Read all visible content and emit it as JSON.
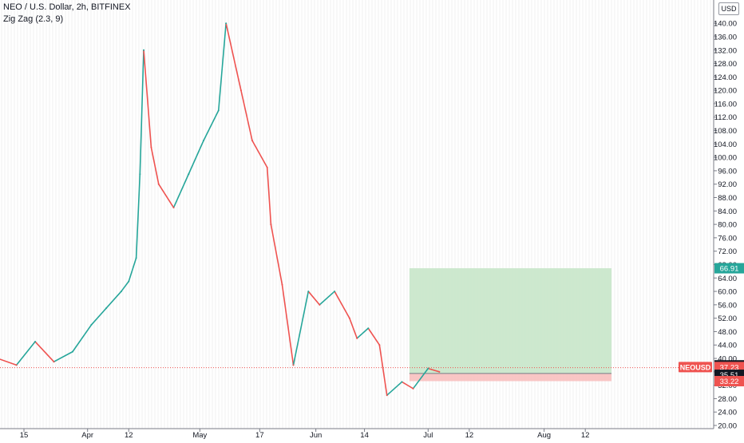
{
  "legend": {
    "title": "NEO / U.S. Dollar, 2h, BITFINEX",
    "indicator": "Zig Zag (2.3, 9)"
  },
  "price_axis": {
    "currency": "USD"
  },
  "colors": {
    "up": "#26a69a",
    "down": "#ef5350",
    "profit_zone": "#c8e6c9",
    "loss_zone": "#f8c0bf",
    "profit_tag": "#26a69a",
    "loss_tag": "#ef5350",
    "current_tag": "#ef5350",
    "neutral_tag": "#131722",
    "axis_text": "#131722",
    "grid": "#e6e6ea"
  },
  "chart_data": {
    "type": "line",
    "title": "NEO / U.S. Dollar, 2h, BITFINEX",
    "ylabel": "USD",
    "ylim": [
      20,
      146
    ],
    "y_ticks": [
      "20.00",
      "24.00",
      "28.00",
      "32.00",
      "36.00",
      "40.00",
      "44.00",
      "48.00",
      "52.00",
      "56.00",
      "60.00",
      "64.00",
      "68.00",
      "72.00",
      "76.00",
      "80.00",
      "84.00",
      "88.00",
      "92.00",
      "96.00",
      "100.00",
      "104.00",
      "108.00",
      "112.00",
      "116.00",
      "120.00",
      "124.00",
      "128.00",
      "132.00",
      "136.00",
      "140.00"
    ],
    "x_ticks": [
      "15",
      "Apr",
      "12",
      "May",
      "17",
      "Jun",
      "14",
      "Jul",
      "12",
      "Aug",
      "12"
    ],
    "x": [
      "Mar 08",
      "Mar 13",
      "Mar 18",
      "Mar 23",
      "Mar 28",
      "Apr 02",
      "Apr 06",
      "Apr 10",
      "Apr 12",
      "Apr 14",
      "Apr 15",
      "Apr 16",
      "Apr 18",
      "Apr 20",
      "Apr 24",
      "Apr 28",
      "May 02",
      "May 06",
      "May 08",
      "May 12",
      "May 15",
      "May 19",
      "May 20",
      "May 23",
      "May 26",
      "May 30",
      "Jun 02",
      "Jun 06",
      "Jun 10",
      "Jun 12",
      "Jun 15",
      "Jun 18",
      "Jun 20",
      "Jun 24",
      "Jun 27",
      "Jul 01",
      "Jul 04"
    ],
    "series": [
      {
        "values": [
          40,
          38,
          45,
          39,
          42,
          50,
          55,
          60,
          63,
          70,
          95,
          132,
          103,
          92,
          85,
          95,
          105,
          114,
          140,
          120,
          105,
          97,
          80,
          62,
          38,
          60,
          56,
          60,
          52,
          46,
          49,
          44,
          29,
          33,
          31,
          37,
          36
        ]
      }
    ],
    "last_close": 37.23,
    "price_labels": {
      "current_symbol": "NEOUSD",
      "current": "37.23",
      "entry": "35.51",
      "stop": "33.22",
      "target": "66.91",
      "high": "37.93"
    },
    "position": {
      "type": "long",
      "entry": 35.51,
      "stop": 33.22,
      "target": 66.91,
      "start": "Jun 26",
      "end": "Aug 19"
    }
  }
}
